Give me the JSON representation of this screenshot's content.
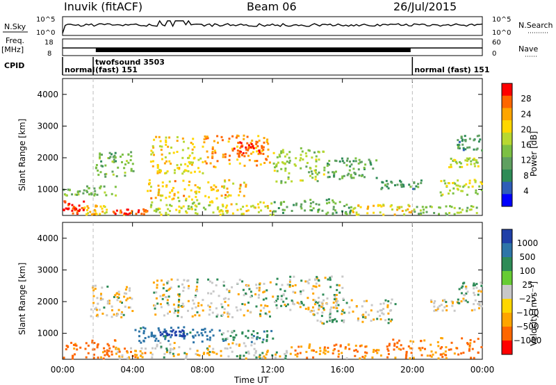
{
  "header": {
    "station": "Inuvik (fitACF)",
    "beam": "Beam 06",
    "date": "26/Jul/2015"
  },
  "nsky_panel": {
    "label": "N.Sky",
    "yticks": [
      "10^5",
      "10^0"
    ],
    "right_label": "N.Search",
    "right_yticks": [
      "10^5",
      "10^0"
    ]
  },
  "freq_panel": {
    "label": "Freq.",
    "unit": "[MHz]",
    "yticks": [
      "18",
      "8"
    ],
    "right_label": "Nave",
    "right_yticks": [
      "60",
      "0"
    ]
  },
  "cpid_panel": {
    "label": "CPID",
    "segments": [
      {
        "start_hour": 0.0,
        "end_hour": 1.75,
        "text": "normal",
        "text2": ""
      },
      {
        "start_hour": 1.75,
        "end_hour": 20.0,
        "text": "twofsound 3503",
        "text2": "(fast) 151"
      },
      {
        "start_hour": 20.0,
        "end_hour": 24.0,
        "text": "normal (fast) 151",
        "text2": ""
      }
    ]
  },
  "axes": {
    "xlabel": "Time UT",
    "xticks": [
      "00:00",
      "04:00",
      "08:00",
      "12:00",
      "16:00",
      "20:00",
      "00:00"
    ],
    "ylabel": "Slant Range [km]",
    "yticks": [
      "1000",
      "2000",
      "3000",
      "4000"
    ]
  },
  "power_colorbar": {
    "label": "Power [dB]",
    "ticks": [
      "4",
      "8",
      "12",
      "16",
      "20",
      "24",
      "28"
    ]
  },
  "velocity_colorbar": {
    "label": "Velocity [m s⁻¹]",
    "ticks": [
      "1000",
      "500",
      "100",
      "25",
      "−25",
      "−100",
      "−500",
      "−1000"
    ]
  },
  "chart_data": [
    {
      "type": "heatmap",
      "title": "Power",
      "quantity": "Power [dB]",
      "x_unit": "hours UT",
      "xlim": [
        0,
        24
      ],
      "ylim": [
        180,
        4500
      ],
      "colorscale": [
        "#0000ff",
        "#2e5db8",
        "#2e8b57",
        "#5fa060",
        "#7cc043",
        "#b8d830",
        "#ffd700",
        "#ffa500",
        "#ff6600",
        "#ff0000"
      ],
      "clim": [
        0,
        32
      ],
      "patches": [
        {
          "t0": 0.0,
          "t1": 1.2,
          "r0": 200,
          "r1": 650,
          "value": 30
        },
        {
          "t0": 1.2,
          "t1": 2.6,
          "r0": 200,
          "r1": 500,
          "value": 22
        },
        {
          "t0": 2.8,
          "t1": 4.8,
          "r0": 200,
          "r1": 380,
          "value": 29
        },
        {
          "t0": 5.0,
          "t1": 8.5,
          "r0": 200,
          "r1": 700,
          "value": 18
        },
        {
          "t0": 8.5,
          "t1": 12.0,
          "r0": 200,
          "r1": 600,
          "value": 20
        },
        {
          "t0": 12.0,
          "t1": 16.5,
          "r0": 200,
          "r1": 700,
          "value": 12
        },
        {
          "t0": 16.5,
          "t1": 20.0,
          "r0": 200,
          "r1": 520,
          "value": 21
        },
        {
          "t0": 20.0,
          "t1": 24.0,
          "r0": 200,
          "r1": 480,
          "value": 15
        },
        {
          "t0": 4.8,
          "t1": 10.5,
          "r0": 700,
          "r1": 1300,
          "value": 22
        },
        {
          "t0": 0.0,
          "t1": 3.0,
          "r0": 800,
          "r1": 1100,
          "value": 14
        },
        {
          "t0": 1.8,
          "t1": 4.0,
          "r0": 1400,
          "r1": 2200,
          "value": 13
        },
        {
          "t0": 5.0,
          "t1": 8.0,
          "r0": 1500,
          "r1": 2700,
          "value": 20
        },
        {
          "t0": 8.0,
          "t1": 11.8,
          "r0": 1700,
          "r1": 2700,
          "value": 25
        },
        {
          "t0": 10.0,
          "t1": 11.5,
          "r0": 2000,
          "r1": 2500,
          "value": 29
        },
        {
          "t0": 12.0,
          "t1": 15.0,
          "r0": 1200,
          "r1": 2300,
          "value": 16
        },
        {
          "t0": 15.0,
          "t1": 18.0,
          "r0": 1300,
          "r1": 2000,
          "value": 11
        },
        {
          "t0": 18.0,
          "t1": 20.5,
          "r0": 1000,
          "r1": 1300,
          "value": 10
        },
        {
          "t0": 21.5,
          "t1": 24.0,
          "r0": 800,
          "r1": 1300,
          "value": 18
        },
        {
          "t0": 22.0,
          "t1": 24.0,
          "r0": 1700,
          "r1": 2000,
          "value": 17
        },
        {
          "t0": 22.5,
          "t1": 24.0,
          "r0": 2200,
          "r1": 2700,
          "value": 10
        }
      ]
    },
    {
      "type": "heatmap",
      "title": "Velocity",
      "quantity": "Velocity [m s-1]",
      "x_unit": "hours UT",
      "xlim": [
        0,
        24
      ],
      "ylim": [
        180,
        4500
      ],
      "color_levels": [
        {
          "level": 1000,
          "color": "#1f3fa8"
        },
        {
          "level": 500,
          "color": "#2e75a8"
        },
        {
          "level": 100,
          "color": "#2e8b57"
        },
        {
          "level": 25,
          "color": "#66cc33"
        },
        {
          "level": 0,
          "color": "#c8c8c8"
        },
        {
          "level": -25,
          "color": "#ffd700"
        },
        {
          "level": -100,
          "color": "#ffa500"
        },
        {
          "level": -500,
          "color": "#ff6600"
        },
        {
          "level": -1000,
          "color": "#ff0000"
        }
      ],
      "patches": [
        {
          "t0": 0.0,
          "t1": 3.0,
          "r0": 200,
          "r1": 800,
          "value": -150
        },
        {
          "t0": 3.0,
          "t1": 5.0,
          "r0": 200,
          "r1": 550,
          "value": -60
        },
        {
          "t0": 5.0,
          "t1": 11.0,
          "r0": 200,
          "r1": 700,
          "value": -20
        },
        {
          "t0": 11.0,
          "t1": 13.0,
          "r0": 200,
          "r1": 450,
          "value": 0
        },
        {
          "t0": 13.0,
          "t1": 18.5,
          "r0": 200,
          "r1": 650,
          "value": -80
        },
        {
          "t0": 18.5,
          "t1": 24.0,
          "r0": 200,
          "r1": 850,
          "value": -120
        },
        {
          "t0": 4.0,
          "t1": 9.0,
          "r0": 700,
          "r1": 1200,
          "value": 150
        },
        {
          "t0": 5.5,
          "t1": 7.0,
          "r0": 900,
          "r1": 1100,
          "value": 700
        },
        {
          "t0": 9.0,
          "t1": 12.0,
          "r0": 700,
          "r1": 1100,
          "value": 60
        },
        {
          "t0": 5.0,
          "t1": 12.0,
          "r0": 1500,
          "r1": 2700,
          "value": 0
        },
        {
          "t0": 12.0,
          "t1": 16.0,
          "r0": 1700,
          "r1": 2800,
          "value": 0
        },
        {
          "t0": 14.0,
          "t1": 19.0,
          "r0": 1300,
          "r1": 2100,
          "value": 0
        },
        {
          "t0": 1.5,
          "t1": 4.0,
          "r0": 1500,
          "r1": 2500,
          "value": -20
        },
        {
          "t0": 21.0,
          "t1": 24.0,
          "r0": 1700,
          "r1": 2100,
          "value": 0
        },
        {
          "t0": 22.5,
          "t1": 24.0,
          "r0": 2200,
          "r1": 2600,
          "value": 30
        }
      ]
    }
  ]
}
